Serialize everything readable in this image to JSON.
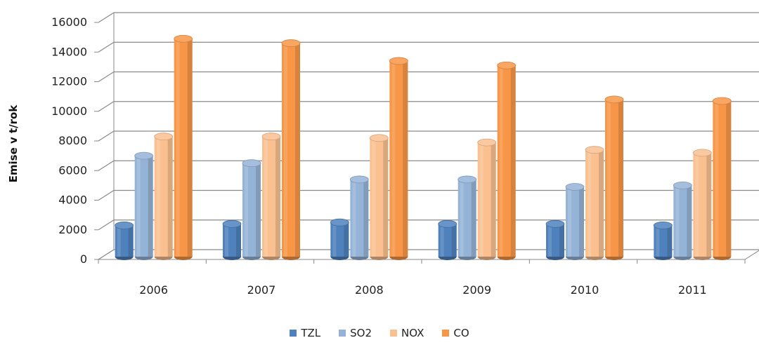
{
  "chart_data": {
    "type": "bar",
    "title": "",
    "xlabel": "",
    "ylabel": "Emise v t/rok",
    "ylim": [
      0,
      16000
    ],
    "yticks": [
      0,
      2000,
      4000,
      6000,
      8000,
      10000,
      12000,
      14000,
      16000
    ],
    "categories": [
      "2006",
      "2007",
      "2008",
      "2009",
      "2010",
      "2011"
    ],
    "series": [
      {
        "name": "TZL",
        "color": "#4F81BD",
        "values": [
          2300,
          2400,
          2500,
          2400,
          2400,
          2300
        ]
      },
      {
        "name": "SO2",
        "color": "#95B3D7",
        "values": [
          7000,
          6500,
          5400,
          5400,
          4900,
          5000
        ]
      },
      {
        "name": "NOX",
        "color": "#FAC090",
        "values": [
          8300,
          8300,
          8200,
          7900,
          7400,
          7200
        ]
      },
      {
        "name": "CO",
        "color": "#F79646",
        "values": [
          14900,
          14600,
          13400,
          13100,
          10800,
          10700
        ]
      }
    ],
    "grid": true,
    "legend_position": "bottom"
  }
}
